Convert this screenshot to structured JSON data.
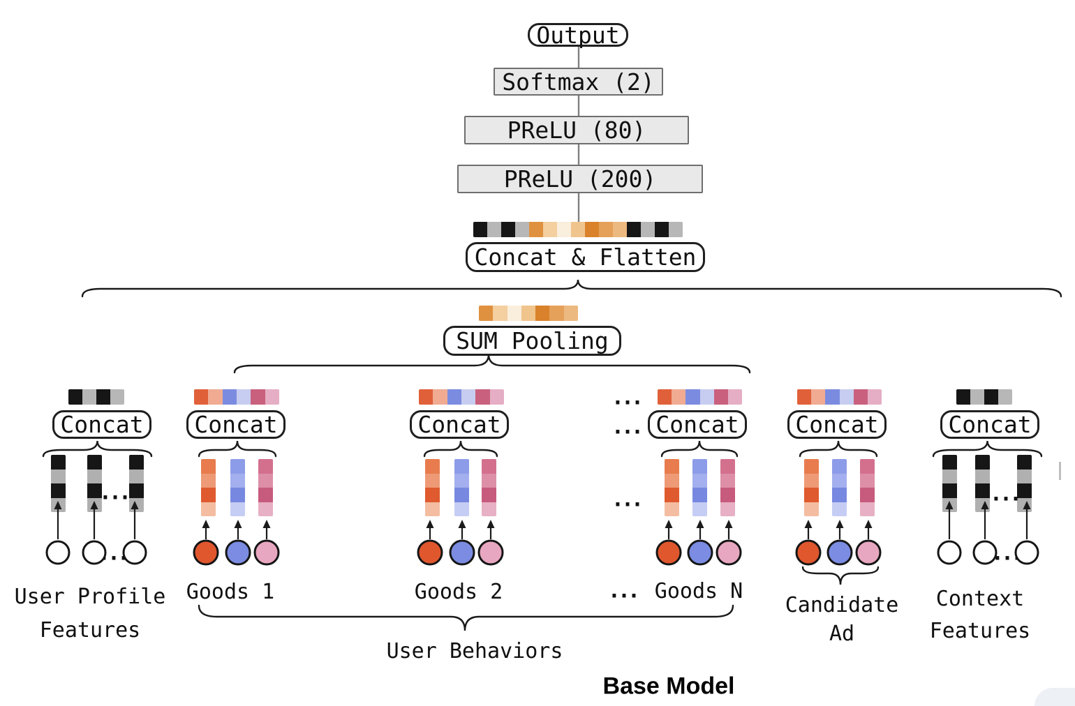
{
  "top_stack": {
    "output_label": "Output",
    "softmax_label": "Softmax (2)",
    "prelu80_label": "PReLU (80)",
    "prelu200_label": "PReLU (200)",
    "concat_flatten_label": "Concat & Flatten",
    "sum_pooling_label": "SUM Pooling"
  },
  "concat_label": "Concat",
  "ellipsis": "...",
  "group_labels": {
    "user_behaviors": "User Behaviors",
    "base_model": "Base Model"
  },
  "columns": [
    {
      "id": "user-profile-features",
      "kind": "bw",
      "label_lines": [
        "User Profile",
        "Features"
      ]
    },
    {
      "id": "goods-1",
      "kind": "goods",
      "label_lines": [
        "Goods 1"
      ]
    },
    {
      "id": "goods-2",
      "kind": "goods",
      "label_lines": [
        "Goods 2"
      ]
    },
    {
      "id": "goods-n",
      "kind": "goods",
      "label_lines": [
        "Goods N"
      ]
    },
    {
      "id": "candidate-ad",
      "kind": "goods",
      "label_lines": [
        "Candidate",
        "Ad"
      ]
    },
    {
      "id": "context-features",
      "kind": "bw",
      "label_lines": [
        "Context",
        "Features"
      ]
    }
  ],
  "strips": {
    "main": [
      "#161616",
      "#b7b7b7",
      "#161616",
      "#b7b7b7",
      "#e0913f",
      "#f4cf9f",
      "#faeedc",
      "#f0c48d",
      "#d9822b",
      "#e5a05a",
      "#ecb981",
      "#161616",
      "#b7b7b7",
      "#161616",
      "#b7b7b7"
    ],
    "sum": [
      "#e0913f",
      "#f4cf9f",
      "#faeedc",
      "#f0c48d",
      "#d9822b",
      "#e5a05a",
      "#ecb981"
    ],
    "goods": [
      "#e0603a",
      "#f0ab92",
      "#7b8ce0",
      "#c7cdf0",
      "#c9607e",
      "#e5aec5"
    ],
    "bw": [
      "#161616",
      "#b7b7b7",
      "#161616",
      "#b7b7b7"
    ]
  },
  "bars": {
    "orange": [
      "#e87c4e",
      "#ee9a76",
      "#df5a2e",
      "#f4bda1"
    ],
    "blue": [
      "#8d9ce8",
      "#a3afee",
      "#7788e0",
      "#c6cdf4"
    ],
    "pink": [
      "#d3708e",
      "#dd8fa7",
      "#c75b7d",
      "#e7b0c4"
    ],
    "bw": [
      "#161616",
      "#b0b0b0",
      "#161616",
      "#b0b0b0"
    ]
  },
  "circle_colors": {
    "orange": "#e0572e",
    "blue": "#7b8ce2",
    "pink": "#e8a7c0",
    "white": "#ffffff"
  },
  "line_colors": {
    "connector": "#808080",
    "brace": "#1a1a1a",
    "arrow": "#1a1a1a",
    "circle_stroke": "#151515"
  }
}
